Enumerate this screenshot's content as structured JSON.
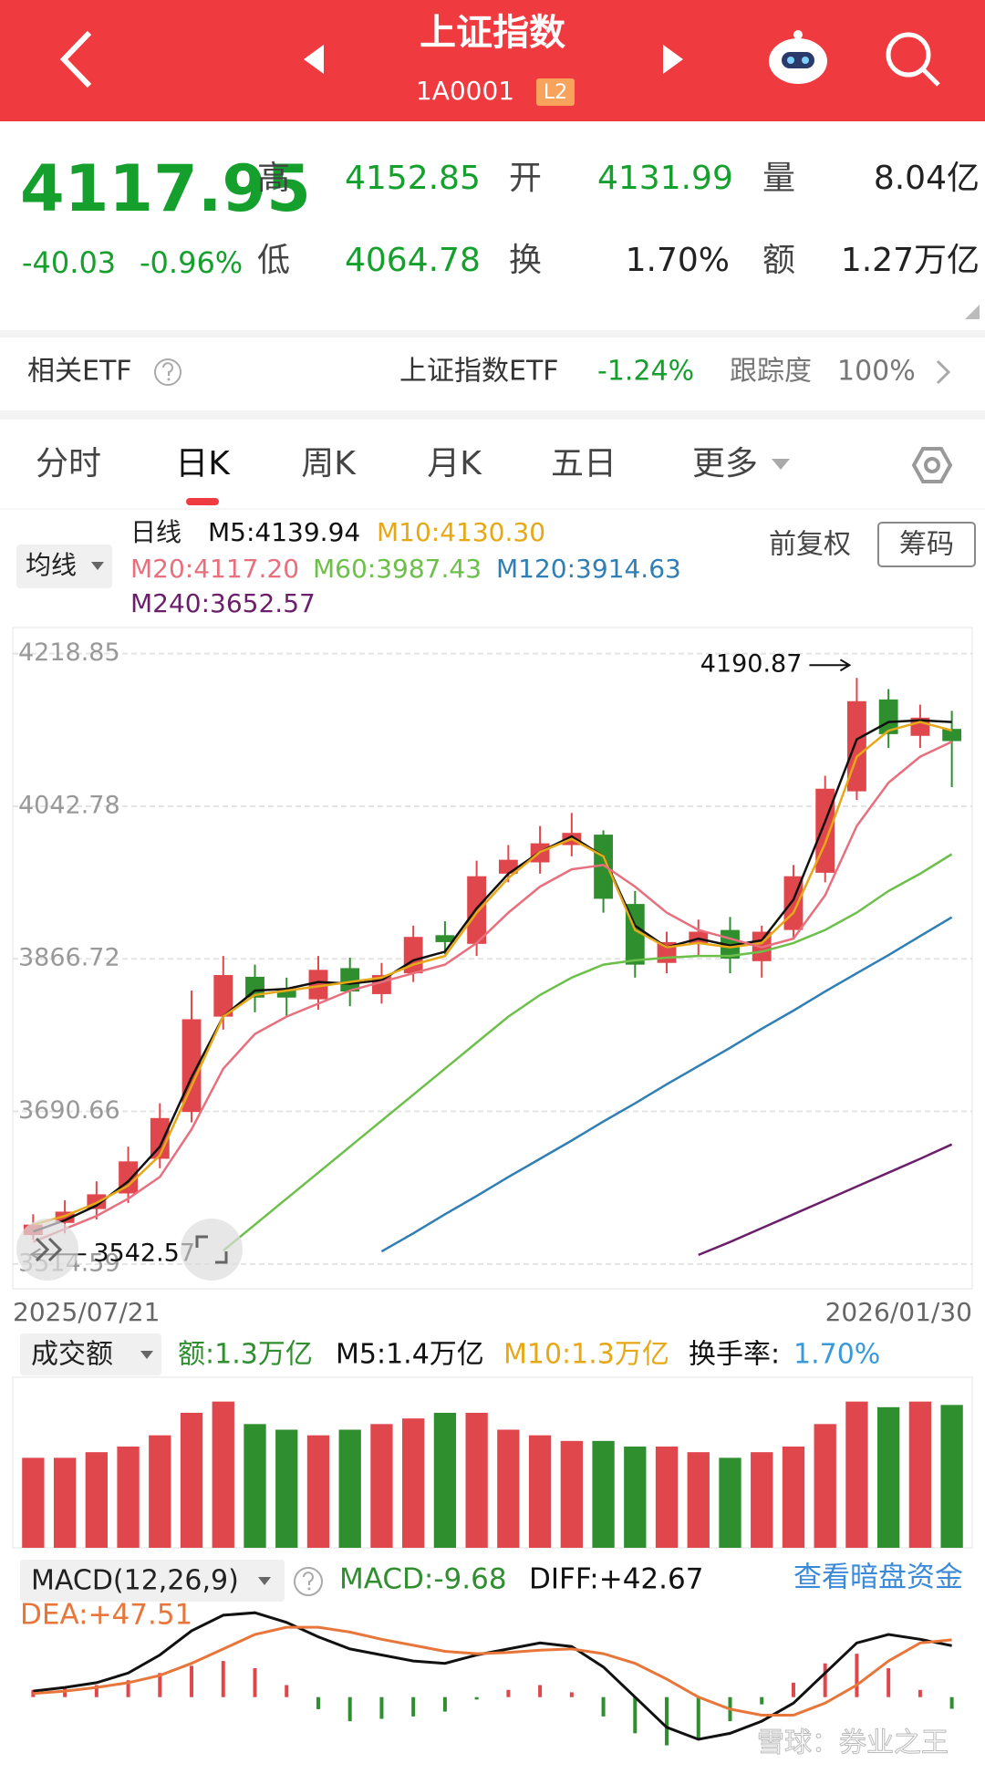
{
  "header": {
    "title": "上证指数",
    "code": "1A0001",
    "badge": "L2"
  },
  "quote": {
    "price": "4117.95",
    "change": "-40.03",
    "change_pct": "-0.96%",
    "fields": [
      {
        "label": "高",
        "value": "4152.85"
      },
      {
        "label": "开",
        "value": "4131.99"
      },
      {
        "label": "量",
        "value": "8.04亿"
      },
      {
        "label": "低",
        "value": "4064.78"
      },
      {
        "label": "换",
        "value": "1.70%"
      },
      {
        "label": "额",
        "value": "1.27万亿"
      }
    ]
  },
  "etf": {
    "label": "相关ETF",
    "name": "上证指数ETF",
    "change": "-1.24%",
    "tracking_label": "跟踪度",
    "tracking": "100%"
  },
  "tabs": [
    "分时",
    "日K",
    "周K",
    "月K",
    "五日",
    "更多"
  ],
  "watermark": "雪球：券业之王",
  "chart_data": [
    {
      "type": "candlestick",
      "legend_title": "日线",
      "ma_button": "均线",
      "adjust": "前复权",
      "chip_button": "筹码",
      "categories": [
        "2025/07/21",
        null,
        null,
        null,
        null,
        null,
        null,
        null,
        null,
        null,
        null,
        null,
        null,
        null,
        null,
        null,
        null,
        null,
        null,
        null,
        null,
        null,
        null,
        null,
        null,
        null,
        null,
        null,
        null,
        "2026/01/30"
      ],
      "open": [
        3548,
        3562,
        3578,
        3596,
        3636,
        3690,
        3800,
        3846,
        3830,
        3820,
        3856,
        3826,
        3850,
        3894,
        3884,
        3965,
        3978,
        3998,
        4010,
        3930,
        3862,
        3884,
        3900,
        3864,
        3900,
        3966,
        4060,
        4166,
        4124,
        4131.99
      ],
      "close": [
        3560,
        3575,
        3595,
        3633,
        3683,
        3797,
        3848,
        3822,
        3822,
        3854,
        3829,
        3848,
        3892,
        3886,
        3962,
        3981,
        4000,
        4012,
        3936,
        3860,
        3886,
        3898,
        3867,
        3898,
        3962,
        4063,
        4164,
        4126,
        4145,
        4117.95
      ],
      "high": [
        3572,
        3588,
        3610,
        3650,
        3700,
        3830,
        3870,
        3860,
        3845,
        3870,
        3868,
        3862,
        3905,
        3910,
        3980,
        3998,
        4020,
        4035,
        4015,
        3945,
        3898,
        3912,
        3915,
        3905,
        3975,
        4078,
        4190.87,
        4178,
        4160,
        4152.85
      ],
      "low": [
        3542.57,
        3550,
        3566,
        3585,
        3625,
        3678,
        3785,
        3805,
        3800,
        3808,
        3812,
        3815,
        3840,
        3872,
        3870,
        3955,
        3965,
        3985,
        3920,
        3845,
        3850,
        3870,
        3850,
        3845,
        3890,
        3955,
        4050,
        4110,
        4110,
        4064.78
      ],
      "up_color": "#e0474c",
      "down_color": "#2f8f2f",
      "series": [
        {
          "name": "M5:4139.94",
          "color": "#111111",
          "values": [
            3552,
            3565,
            3582,
            3610,
            3650,
            3730,
            3800,
            3830,
            3832,
            3840,
            3838,
            3842,
            3865,
            3875,
            3925,
            3965,
            3990,
            4008,
            3985,
            3905,
            3880,
            3890,
            3882,
            3888,
            3935,
            4025,
            4120,
            4140,
            4142,
            4139.94
          ]
        },
        {
          "name": "M10:4130.30",
          "color": "#e6a817",
          "values": [
            3560,
            3570,
            3585,
            3605,
            3640,
            3720,
            3800,
            3825,
            3830,
            3835,
            3840,
            3845,
            3860,
            3870,
            3920,
            3960,
            3990,
            4005,
            3985,
            3900,
            3880,
            3885,
            3880,
            3885,
            3920,
            4000,
            4100,
            4130,
            4140,
            4130.3
          ]
        },
        {
          "name": "M20:4117.20",
          "color": "#e8707e",
          "values": [
            3540,
            3555,
            3570,
            3590,
            3615,
            3670,
            3740,
            3780,
            3800,
            3815,
            3830,
            3840,
            3850,
            3860,
            3885,
            3920,
            3950,
            3970,
            3975,
            3950,
            3920,
            3900,
            3890,
            3880,
            3890,
            3940,
            4020,
            4070,
            4100,
            4117.2
          ]
        },
        {
          "name": "M60:3987.43",
          "color": "#6cc04a",
          "values": [
            null,
            null,
            null,
            null,
            null,
            null,
            3530,
            3560,
            3590,
            3620,
            3650,
            3680,
            3710,
            3740,
            3770,
            3800,
            3825,
            3845,
            3860,
            3865,
            3868,
            3870,
            3870,
            3875,
            3885,
            3900,
            3920,
            3945,
            3965,
            3987.43
          ]
        },
        {
          "name": "M120:3914.63",
          "color": "#2f7fb5",
          "values": [
            null,
            null,
            null,
            null,
            null,
            null,
            null,
            null,
            null,
            null,
            null,
            3529,
            3550,
            3572,
            3593,
            3615,
            3636,
            3657,
            3679,
            3700,
            3722,
            3743,
            3764,
            3786,
            3807,
            3829,
            3850,
            3871,
            3893,
            3914.63
          ]
        },
        {
          "name": "M240:3652.57",
          "color": "#6b1f6b",
          "values": [
            null,
            null,
            null,
            null,
            null,
            null,
            null,
            null,
            null,
            null,
            null,
            null,
            null,
            null,
            null,
            null,
            null,
            null,
            null,
            null,
            null,
            3525,
            3540,
            3556,
            3572,
            3588,
            3604,
            3620,
            3636,
            3652.57
          ]
        }
      ],
      "ylim": [
        3486,
        4249
      ],
      "yticks": [
        4218.85,
        4042.78,
        3866.72,
        3690.66,
        3514.59
      ],
      "grid": true
    },
    {
      "type": "bar",
      "title": "成交额",
      "legend": [
        {
          "text": "额:1.3万亿",
          "color": "#2f8f2f"
        },
        {
          "text": "M5:1.4万亿",
          "color": "#111111"
        },
        {
          "text": "M10:1.3万亿",
          "color": "#e6a817"
        },
        {
          "text": "换手率:",
          "color": "#111111"
        },
        {
          "text": "1.70%",
          "color": "#3a9ad9"
        }
      ],
      "values": [
        0.8,
        0.8,
        0.85,
        0.9,
        1.0,
        1.2,
        1.3,
        1.1,
        1.05,
        1.0,
        1.05,
        1.1,
        1.15,
        1.2,
        1.2,
        1.05,
        1.0,
        0.95,
        0.95,
        0.9,
        0.9,
        0.85,
        0.8,
        0.85,
        0.9,
        1.1,
        1.3,
        1.25,
        1.3,
        1.27
      ],
      "ylim": [
        0,
        1.5
      ]
    },
    {
      "type": "combo",
      "title": "MACD(12,26,9)",
      "link": "查看暗盘资金",
      "series": [
        {
          "name": "MACD:-9.68",
          "type": "bar",
          "color": "#2f8f2f",
          "up_color": "#e0474c",
          "values": [
            6,
            8,
            10,
            14,
            20,
            26,
            30,
            24,
            10,
            -10,
            -20,
            -18,
            -16,
            -12,
            -2,
            6,
            10,
            4,
            -16,
            -30,
            -40,
            -34,
            -20,
            -6,
            12,
            28,
            36,
            24,
            6,
            -9.68
          ]
        },
        {
          "name": "DIFF:+42.67",
          "type": "line",
          "color": "#111111",
          "values": [
            5,
            8,
            12,
            20,
            35,
            55,
            68,
            70,
            62,
            50,
            40,
            35,
            30,
            28,
            35,
            40,
            45,
            42,
            25,
            0,
            -25,
            -35,
            -30,
            -20,
            -5,
            20,
            45,
            52,
            48,
            42.67
          ]
        },
        {
          "name": "DEA:+47.51",
          "type": "line",
          "color": "#e8763a",
          "values": [
            3,
            5,
            8,
            12,
            18,
            28,
            40,
            52,
            58,
            58,
            54,
            48,
            43,
            38,
            36,
            37,
            39,
            40,
            36,
            28,
            15,
            0,
            -10,
            -15,
            -15,
            -5,
            10,
            30,
            45,
            47.51
          ]
        }
      ],
      "ylim": [
        -60,
        80
      ]
    }
  ]
}
